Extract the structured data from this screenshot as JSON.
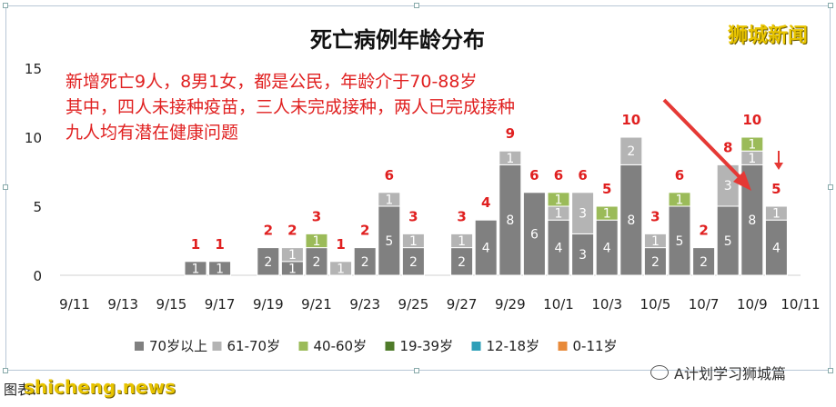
{
  "watermark": "狮城新闻",
  "footer_left": "图表：",
  "footer_brand": "shicheng.news",
  "footer_right": "A计划学习狮城篇",
  "chart_data": {
    "type": "bar",
    "title": "死亡病例年龄分布",
    "annotation_lines": [
      "新增死亡9人，8男1女，都是公民，年龄介于70-88岁",
      "其中，四人未接种疫苗，三人未完成接种，两人已完成接种",
      "九人均有潜在健康问题"
    ],
    "ylim": [
      0,
      15
    ],
    "yticks": [
      "0",
      "5",
      "10",
      "15"
    ],
    "x_tick_labels": [
      "9/11",
      "9/13",
      "9/15",
      "9/17",
      "9/19",
      "9/21",
      "9/23",
      "9/25",
      "9/27",
      "9/29",
      "10/1",
      "10/3",
      "10/5",
      "10/7",
      "10/9",
      "10/11"
    ],
    "categories": [
      "9/11",
      "9/12",
      "9/13",
      "9/14",
      "9/15",
      "9/16",
      "9/17",
      "9/18",
      "9/19",
      "9/20",
      "9/21",
      "9/22",
      "9/23",
      "9/24",
      "9/25",
      "9/26",
      "9/27",
      "9/28",
      "9/29",
      "9/30",
      "10/1",
      "10/2",
      "10/3",
      "10/4",
      "10/5",
      "10/6",
      "10/7",
      "10/8",
      "10/9",
      "10/10",
      "10/11"
    ],
    "series": [
      {
        "name": "70岁以上",
        "color": "#808080",
        "values": [
          0,
          0,
          0,
          0,
          0,
          1,
          1,
          0,
          2,
          1,
          2,
          0,
          2,
          5,
          2,
          0,
          2,
          4,
          8,
          6,
          4,
          3,
          4,
          8,
          2,
          5,
          2,
          5,
          8,
          4,
          0
        ]
      },
      {
        "name": "61-70岁",
        "color": "#b4b4b4",
        "values": [
          0,
          0,
          0,
          0,
          0,
          0,
          0,
          0,
          0,
          1,
          0,
          1,
          0,
          1,
          1,
          0,
          1,
          0,
          1,
          0,
          1,
          3,
          0,
          2,
          1,
          0,
          0,
          3,
          1,
          1,
          0
        ]
      },
      {
        "name": "40-60岁",
        "color": "#9bbb59",
        "values": [
          0,
          0,
          0,
          0,
          0,
          0,
          0,
          0,
          0,
          0,
          1,
          0,
          0,
          0,
          0,
          0,
          0,
          0,
          0,
          0,
          1,
          0,
          1,
          0,
          0,
          1,
          0,
          0,
          1,
          0,
          0
        ]
      },
      {
        "name": "19-39岁",
        "color": "#4f7b2a",
        "values": [
          0,
          0,
          0,
          0,
          0,
          0,
          0,
          0,
          0,
          0,
          0,
          0,
          0,
          0,
          0,
          0,
          0,
          0,
          0,
          0,
          0,
          0,
          0,
          0,
          0,
          0,
          0,
          0,
          0,
          0,
          0
        ]
      },
      {
        "name": "12-18岁",
        "color": "#2e9fb8",
        "values": [
          0,
          0,
          0,
          0,
          0,
          0,
          0,
          0,
          0,
          0,
          0,
          0,
          0,
          0,
          0,
          0,
          0,
          0,
          0,
          0,
          0,
          0,
          0,
          0,
          0,
          0,
          0,
          0,
          0,
          0,
          0
        ]
      },
      {
        "name": "0-11岁",
        "color": "#e88a3a",
        "values": [
          0,
          0,
          0,
          0,
          0,
          0,
          0,
          0,
          0,
          0,
          0,
          0,
          0,
          0,
          0,
          0,
          0,
          0,
          0,
          0,
          0,
          0,
          0,
          0,
          0,
          0,
          0,
          0,
          0,
          0,
          0
        ]
      }
    ],
    "totals": [
      "",
      "",
      "",
      "",
      "",
      "1",
      "1",
      "",
      "2",
      "2",
      "3",
      "1",
      "2",
      "6",
      "3",
      "",
      "3",
      "4",
      "9",
      "6",
      "6",
      "6",
      "5",
      "10",
      "3",
      "6",
      "2",
      "8",
      "10",
      "5",
      ""
    ],
    "total_color": "#e02020",
    "annotation_color": "#e02020",
    "legend_position": "bottom",
    "grid": false
  }
}
